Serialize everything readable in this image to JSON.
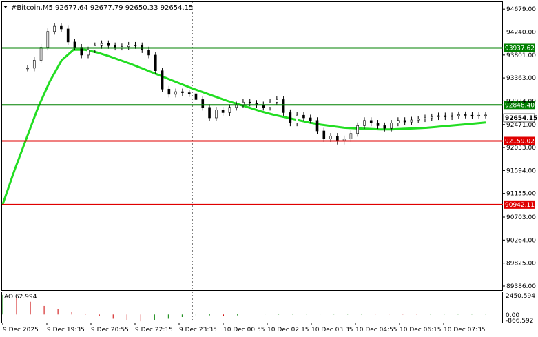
{
  "header": {
    "symbol_line": "#Bitcoin,M5  92677.64 92677.79 92650.33 92654.15"
  },
  "indicator": {
    "label": "AO 62.994",
    "axis_top": "2450.594",
    "axis_zero": "0.00",
    "axis_bottom": "-866.592"
  },
  "price_axis": [
    "94679.00",
    "94240.00",
    "93801.00",
    "93363.00",
    "92924.00",
    "92471.00",
    "92033.00",
    "91594.00",
    "91155.00",
    "90703.00",
    "90264.00",
    "89825.00",
    "89386.00"
  ],
  "time_axis": [
    "9 Dec 2025",
    "9 Dec 19:35",
    "9 Dec 20:55",
    "9 Dec 22:15",
    "9 Dec 23:35",
    "10 Dec 00:55",
    "10 Dec 02:15",
    "10 Dec 03:35",
    "10 Dec 04:55",
    "10 Dec 06:15",
    "10 Dec 07:35"
  ],
  "levels": [
    {
      "name": "resistance-high",
      "label": "93937.62",
      "value": 93937.62,
      "color": "#008000"
    },
    {
      "name": "resistance-low",
      "label": "92846.40",
      "value": 92846.4,
      "color": "#008000"
    },
    {
      "name": "support-high",
      "label": "92159.02",
      "value": 92159.02,
      "color": "#e00000"
    },
    {
      "name": "support-low",
      "label": "90942.11",
      "value": 90942.11,
      "color": "#e00000"
    }
  ],
  "current_price": {
    "label": "92654.15",
    "value": 92654.15
  },
  "colors": {
    "candles": "#000000",
    "ma": "#22dd22",
    "ao_up": "#008000",
    "ao_down": "#cc0000"
  },
  "chart_data": {
    "type": "candlestick",
    "title": "#Bitcoin,M5",
    "ylim": [
      89320,
      94800
    ],
    "series": [
      {
        "name": "price",
        "values": [
          93550,
          93700,
          93950,
          94250,
          94350,
          94300,
          94050,
          93950,
          93800,
          93900,
          93980,
          94020,
          93980,
          93950,
          93960,
          93990,
          93980,
          93900,
          93800,
          93500,
          93150,
          93050,
          93100,
          93080,
          93060,
          92950,
          92800,
          92600,
          92750,
          92700,
          92800,
          92850,
          92900,
          92880,
          92850,
          92800,
          92900,
          92950,
          92700,
          92500,
          92650,
          92600,
          92550,
          92350,
          92200,
          92250,
          92150,
          92200,
          92300,
          92450,
          92550,
          92500,
          92450,
          92400,
          92500,
          92550,
          92520,
          92560,
          92580,
          92600,
          92620,
          92640,
          92620,
          92640,
          92660,
          92650,
          92640,
          92650,
          92654
        ]
      },
      {
        "name": "ma",
        "values": [
          90950,
          91600,
          92200,
          92800,
          93300,
          93700,
          93900,
          93900,
          93850,
          93780,
          93700,
          93620,
          93530,
          93440,
          93350,
          93260,
          93170,
          93090,
          93010,
          92930,
          92860,
          92790,
          92720,
          92660,
          92610,
          92560,
          92510,
          92470,
          92440,
          92410,
          92400,
          92390,
          92380,
          92380,
          92390,
          92400,
          92410,
          92430,
          92450,
          92470,
          92490,
          92510
        ]
      }
    ],
    "ao": {
      "values": [
        2300,
        2000,
        1500,
        1000,
        600,
        300,
        100,
        -200,
        -500,
        -700,
        -800,
        -700,
        -500,
        -300,
        -100,
        -100,
        -150,
        -100,
        -80,
        -50,
        -30,
        -20,
        -10,
        10,
        20,
        40,
        60,
        50,
        40,
        30,
        20,
        30,
        40,
        50,
        60,
        62.994
      ]
    }
  }
}
